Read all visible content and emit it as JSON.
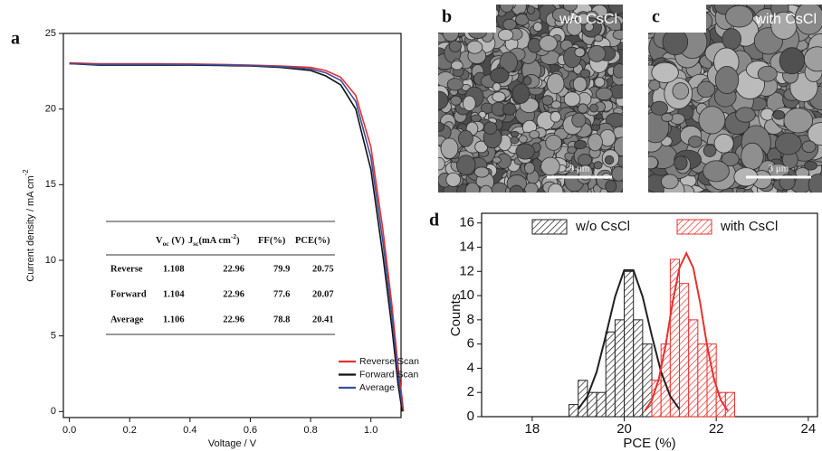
{
  "chart_data": [
    {
      "type": "line",
      "panel_label": "a",
      "xlabel": "Voltage / V",
      "ylabel": {
        "text": "Current density / mA cm",
        "sup": "-2"
      },
      "xlim": [
        -0.02,
        1.1
      ],
      "ylim": [
        -0.4,
        25
      ],
      "xticks": [
        {
          "value": 0,
          "label": "0.0"
        },
        0.2,
        0.4,
        0.6,
        0.8,
        {
          "value": 1,
          "label": "1.0"
        }
      ],
      "yticks": [
        0,
        5,
        10,
        15,
        20,
        25
      ],
      "x": [
        0,
        0.1,
        0.2,
        0.3,
        0.4,
        0.5,
        0.6,
        0.7,
        0.8,
        0.85,
        0.9,
        0.95,
        1.0,
        1.04,
        1.07,
        1.09,
        1.104,
        1.108
      ],
      "series": [
        {
          "name": "Reverse Scan",
          "color": "#e8312f",
          "values": [
            23.05,
            23.0,
            23.0,
            23.0,
            22.98,
            22.95,
            22.9,
            22.85,
            22.75,
            22.55,
            22.1,
            20.9,
            17.5,
            12.0,
            7.0,
            3.0,
            0.8,
            0
          ]
        },
        {
          "name": "Forward Scan",
          "color": "#111111",
          "values": [
            23.0,
            22.9,
            22.9,
            22.9,
            22.9,
            22.88,
            22.85,
            22.75,
            22.55,
            22.2,
            21.6,
            20.0,
            16.0,
            10.3,
            5.5,
            1.8,
            0,
            null
          ]
        },
        {
          "name": "Average",
          "color": "#3a4fa0",
          "values": [
            23.0,
            22.95,
            22.95,
            22.95,
            22.94,
            22.92,
            22.88,
            22.8,
            22.65,
            22.4,
            21.9,
            20.5,
            16.8,
            11.2,
            6.3,
            2.4,
            0.4,
            null
          ]
        }
      ],
      "legend": "lower right",
      "table": {
        "header": [
          {
            "text": "V",
            "sub": "oc",
            "after": " (V)"
          },
          {
            "text": "J",
            "sub": "sc",
            "after": "(mA cm",
            "sup": "-2",
            "end": ")"
          },
          {
            "text": "FF(%)"
          },
          {
            "text": "PCE(%)"
          }
        ],
        "rows": [
          [
            "Reverse",
            1.108,
            22.96,
            79.9,
            20.75
          ],
          [
            "Forward",
            1.104,
            22.96,
            77.6,
            20.07
          ],
          [
            "Average",
            1.106,
            22.96,
            78.8,
            20.41
          ]
        ]
      }
    },
    {
      "type": "image",
      "panel_label": "b",
      "caption": "w/o CsCl",
      "scale_bar": "3 μm"
    },
    {
      "type": "image",
      "panel_label": "c",
      "caption": "with CsCl",
      "scale_bar": "3 μm"
    },
    {
      "type": "histogram",
      "panel_label": "d",
      "xlabel": "PCE (%)",
      "ylabel": "Counts",
      "xlim": [
        16.9,
        24.2
      ],
      "ylim": [
        0,
        16.8
      ],
      "xticks": [
        18,
        20,
        22,
        24
      ],
      "yticks": [
        0,
        2,
        4,
        6,
        8,
        10,
        12,
        14,
        16
      ],
      "legend": "upper center",
      "series": [
        {
          "name": "w/o CsCl",
          "color": "#222222",
          "bins": [
            18.8,
            19.0,
            19.2,
            19.4,
            19.6,
            19.8,
            20.0,
            20.2,
            20.4,
            20.6,
            20.8,
            21.0
          ],
          "counts": [
            1,
            3,
            2,
            2,
            7,
            8,
            12,
            8,
            6,
            3,
            2
          ],
          "fit": {
            "x": [
              19.0,
              19.2,
              19.4,
              19.6,
              19.8,
              20.0,
              20.2,
              20.4,
              20.6,
              20.8,
              21.0,
              21.2
            ],
            "values": [
              0.62,
              1.68,
              3.7,
              6.7,
              9.9,
              12.1,
              12.1,
              9.9,
              6.7,
              3.7,
              1.68,
              0.62
            ]
          }
        },
        {
          "name": "with CsCl",
          "color": "#e8312f",
          "bins": [
            20.6,
            20.8,
            21.0,
            21.2,
            21.4,
            21.6,
            21.8,
            22.0,
            22.2,
            22.4
          ],
          "counts": [
            3,
            6,
            13,
            11,
            8,
            6,
            6,
            2,
            2
          ],
          "fit": {
            "x": [
              20.45,
              20.6,
              20.75,
              20.9,
              21.05,
              21.2,
              21.35,
              21.5,
              21.65,
              21.8,
              21.95,
              22.1,
              22.25
            ],
            "values": [
              0.49,
              1.35,
              3.1,
              5.9,
              9.4,
              12.3,
              13.5,
              12.3,
              9.4,
              5.9,
              3.1,
              1.35,
              0.49
            ]
          }
        }
      ]
    }
  ]
}
